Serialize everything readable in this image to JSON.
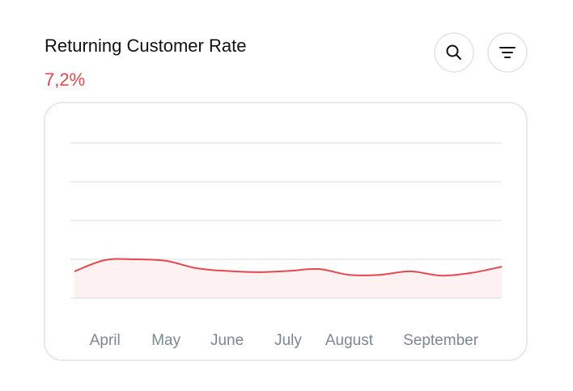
{
  "chart_data": {
    "type": "line",
    "title": "Returning Customer Rate",
    "subtitle": "7,2%",
    "categories": [
      null,
      "April",
      null,
      "May",
      null,
      "June",
      null,
      "July",
      null,
      "August",
      null,
      null,
      "September",
      null,
      null
    ],
    "series": [
      {
        "color": "#e5484d",
        "values": [
          0.69,
          0.98,
          1.0,
          0.96,
          0.77,
          0.7,
          0.67,
          0.7,
          0.75,
          0.6,
          0.6,
          0.69,
          0.58,
          0.65,
          0.81
        ]
      }
    ],
    "area": true,
    "ylim": [
      0,
      4
    ],
    "yticks": [
      0,
      1,
      2,
      3,
      4
    ],
    "grid": true
  }
}
